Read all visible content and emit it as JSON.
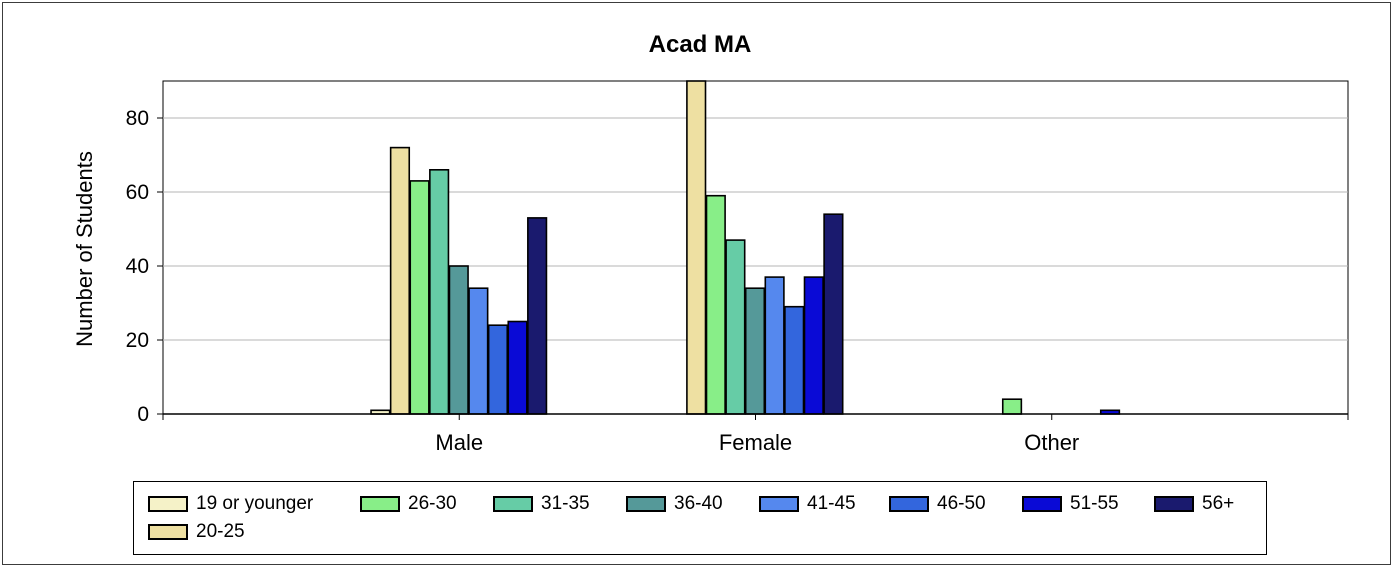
{
  "chart_data": {
    "type": "bar",
    "title": "Acad MA",
    "xlabel": "",
    "ylabel": "Number of Students",
    "ylim": [
      0,
      90
    ],
    "yticks": [
      0,
      20,
      40,
      60,
      80
    ],
    "grid": true,
    "legend_position": "bottom",
    "categories": [
      "Male",
      "Female",
      "Other"
    ],
    "series": [
      {
        "name": "19 or younger",
        "color": "#f5f2c8",
        "values": [
          1,
          0,
          0
        ]
      },
      {
        "name": "20-25",
        "color": "#eee0a2",
        "values": [
          72,
          90,
          0
        ]
      },
      {
        "name": "26-30",
        "color": "#88ee88",
        "values": [
          63,
          59,
          4
        ]
      },
      {
        "name": "31-35",
        "color": "#66cca6",
        "values": [
          66,
          47,
          0
        ]
      },
      {
        "name": "36-40",
        "color": "#559999",
        "values": [
          40,
          34,
          0
        ]
      },
      {
        "name": "41-45",
        "color": "#5588ee",
        "values": [
          34,
          37,
          0
        ]
      },
      {
        "name": "46-50",
        "color": "#3366dd",
        "values": [
          24,
          29,
          0
        ]
      },
      {
        "name": "51-55",
        "color": "#0a0ad6",
        "values": [
          25,
          37,
          1
        ]
      },
      {
        "name": "56+",
        "color": "#1a1a6e",
        "values": [
          53,
          54,
          0
        ]
      }
    ]
  }
}
